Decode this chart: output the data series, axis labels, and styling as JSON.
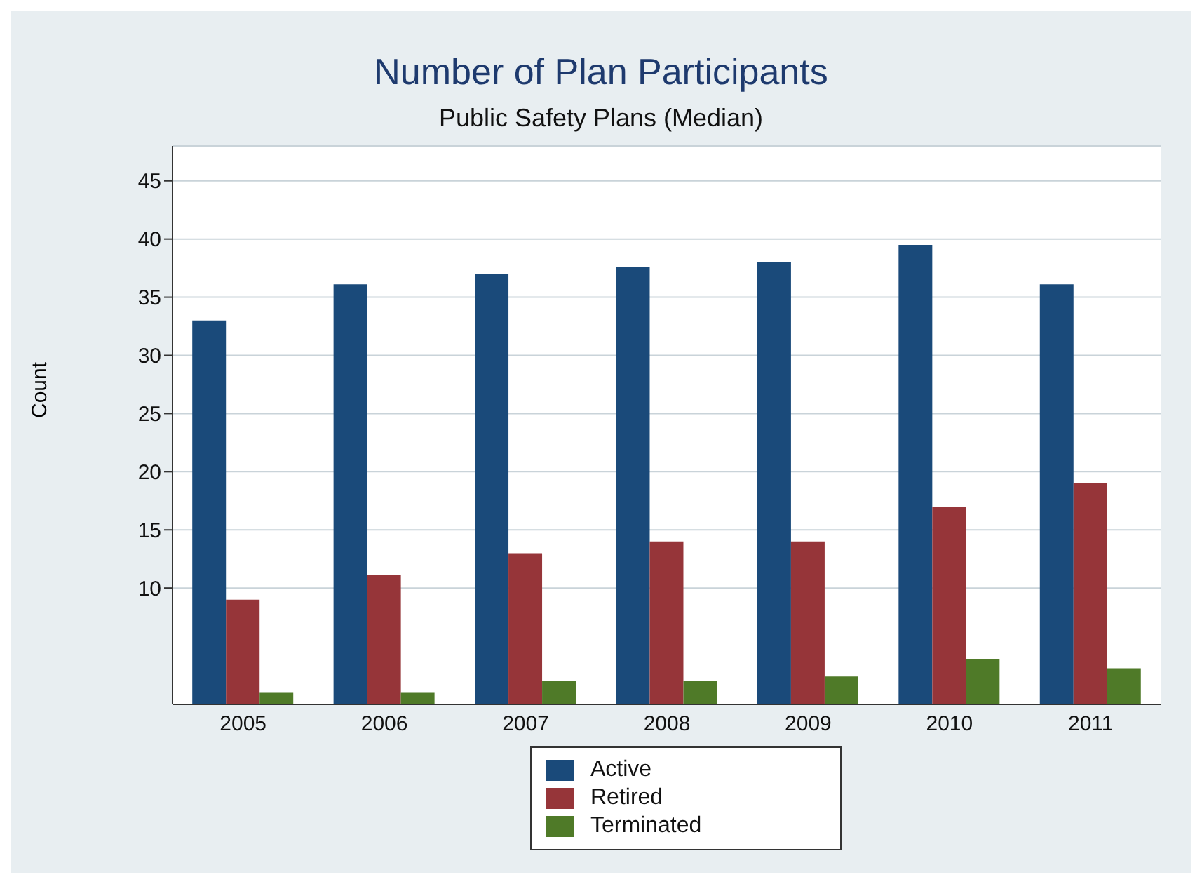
{
  "chart_data": {
    "type": "bar",
    "title": "Number of Plan Participants",
    "subtitle": "Public Safety Plans (Median)",
    "ylabel": "Count",
    "categories": [
      "2005",
      "2006",
      "2007",
      "2008",
      "2009",
      "2010",
      "2011"
    ],
    "series": [
      {
        "name": "Active",
        "color": "#1a4a7a",
        "values": [
          33.0,
          36.1,
          37.0,
          37.6,
          38.0,
          39.5,
          36.1
        ]
      },
      {
        "name": "Retired",
        "color": "#963539",
        "values": [
          9.0,
          11.1,
          13.0,
          14.0,
          14.0,
          17.0,
          19.0
        ]
      },
      {
        "name": "Terminated",
        "color": "#4f7a28",
        "values": [
          1.0,
          1.0,
          2.0,
          2.0,
          2.4,
          3.9,
          3.1
        ]
      }
    ],
    "ylim": [
      0,
      48
    ],
    "yticks": [
      10,
      15,
      20,
      25,
      30,
      35,
      40,
      45
    ],
    "grid": "y",
    "legend": "bottom"
  }
}
